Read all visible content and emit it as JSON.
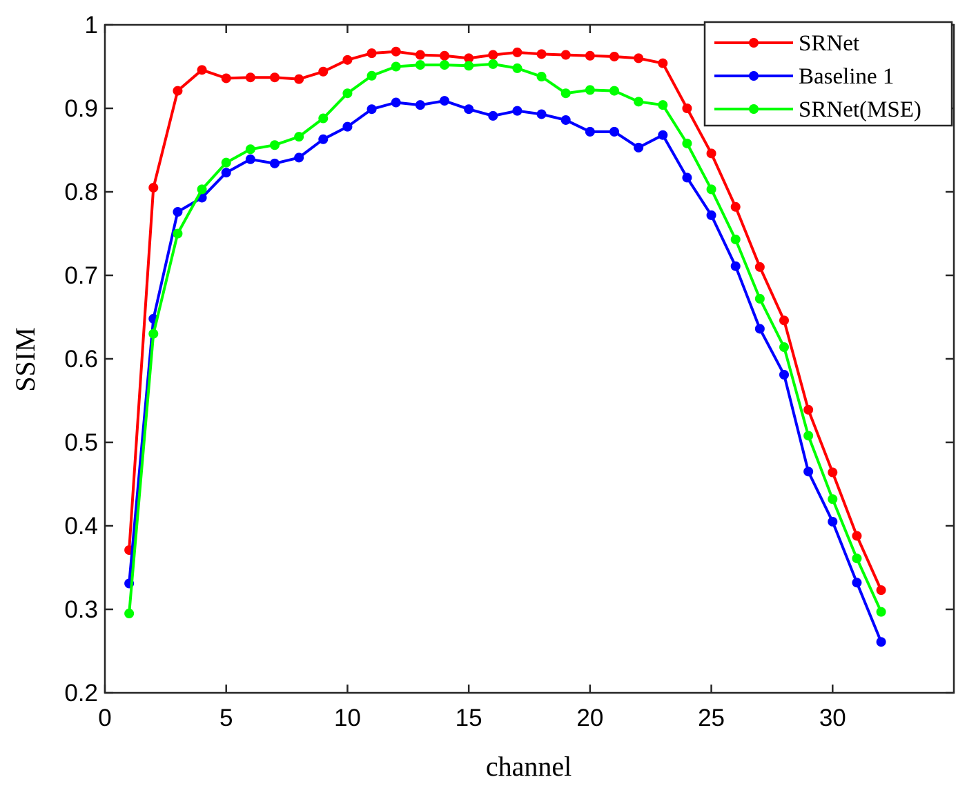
{
  "chart_data": {
    "type": "line",
    "title": "",
    "xlabel": "channel",
    "ylabel": "SSIM",
    "xlim": [
      0,
      35
    ],
    "ylim": [
      0.2,
      1
    ],
    "xticks": [
      0,
      5,
      10,
      15,
      20,
      25,
      30
    ],
    "yticks": [
      0.2,
      0.3,
      0.4,
      0.5,
      0.6,
      0.7,
      0.8,
      0.9,
      1
    ],
    "ytick_labels": [
      "0.2",
      "0.3",
      "0.4",
      "0.5",
      "0.6",
      "0.7",
      "0.8",
      "0.9",
      "1"
    ],
    "grid": false,
    "legend_position": "top-right",
    "x": [
      1,
      2,
      3,
      4,
      5,
      6,
      7,
      8,
      9,
      10,
      11,
      12,
      13,
      14,
      15,
      16,
      17,
      18,
      19,
      20,
      21,
      22,
      23,
      24,
      25,
      26,
      27,
      28,
      29,
      30,
      31,
      32
    ],
    "series": [
      {
        "name": "SRNet",
        "color": "#ff0000",
        "values": [
          0.371,
          0.805,
          0.921,
          0.946,
          0.936,
          0.937,
          0.937,
          0.935,
          0.944,
          0.958,
          0.966,
          0.968,
          0.964,
          0.963,
          0.96,
          0.964,
          0.967,
          0.965,
          0.964,
          0.963,
          0.962,
          0.96,
          0.954,
          0.9,
          0.846,
          0.782,
          0.71,
          0.646,
          0.539,
          0.464,
          0.388,
          0.323
        ]
      },
      {
        "name": "Baseline 1",
        "color": "#0000ff",
        "values": [
          0.331,
          0.648,
          0.776,
          0.793,
          0.823,
          0.839,
          0.834,
          0.841,
          0.863,
          0.878,
          0.899,
          0.907,
          0.904,
          0.909,
          0.899,
          0.891,
          0.897,
          0.893,
          0.886,
          0.872,
          0.872,
          0.853,
          0.868,
          0.817,
          0.772,
          0.711,
          0.636,
          0.581,
          0.465,
          0.405,
          0.332,
          0.261
        ]
      },
      {
        "name": "SRNet(MSE)",
        "color": "#00ff00",
        "values": [
          0.295,
          0.63,
          0.75,
          0.803,
          0.835,
          0.851,
          0.856,
          0.866,
          0.888,
          0.918,
          0.939,
          0.95,
          0.952,
          0.952,
          0.951,
          0.953,
          0.948,
          0.938,
          0.918,
          0.922,
          0.921,
          0.908,
          0.904,
          0.858,
          0.803,
          0.743,
          0.672,
          0.614,
          0.508,
          0.432,
          0.361,
          0.297
        ]
      }
    ]
  }
}
